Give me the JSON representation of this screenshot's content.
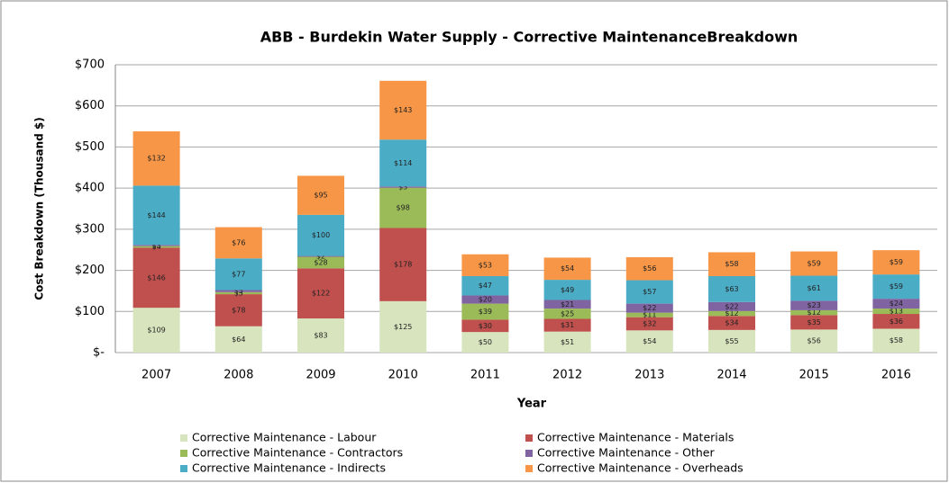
{
  "chart_data": {
    "type": "stacked_bar",
    "title": "ABB -  Burdekin Water Supply  - Corrective MaintenanceBreakdown",
    "xlabel": "Year",
    "ylabel": "Cost Breakdown (Thousand $)",
    "categories": [
      "2007",
      "2008",
      "2009",
      "2010",
      "2011",
      "2012",
      "2013",
      "2014",
      "2015",
      "2016"
    ],
    "series": [
      {
        "name": "Corrective Maintenance - Labour",
        "color": "#d7e4bd",
        "values": [
          109,
          64,
          83,
          125,
          50,
          51,
          54,
          55,
          56,
          58
        ],
        "value_labels": [
          "$109",
          "$64",
          "$83",
          "$125",
          "$50",
          "$51",
          "$54",
          "$55",
          "$56",
          "$58"
        ]
      },
      {
        "name": "Corrective Maintenance - Materials",
        "color": "#c0504d",
        "values": [
          146,
          78,
          122,
          178,
          30,
          31,
          32,
          34,
          35,
          36
        ],
        "value_labels": [
          "$146",
          "$78",
          "$122",
          "$178",
          "$30",
          "$31",
          "$32",
          "$34",
          "$35",
          "$36"
        ]
      },
      {
        "name": "Corrective Maintenance - Contractors",
        "color": "#9bbb59",
        "values": [
          4,
          5,
          28,
          98,
          39,
          25,
          11,
          12,
          12,
          13
        ],
        "value_labels": [
          "$4",
          "$5",
          "$28",
          "$98",
          "$39",
          "$25",
          "$11",
          "$12",
          "$12",
          "$13"
        ]
      },
      {
        "name": "Corrective Maintenance - Other",
        "color": "#8064a2",
        "values": [
          3,
          5,
          2,
          3,
          20,
          21,
          22,
          22,
          23,
          24
        ],
        "value_labels": [
          "$3",
          "$5",
          "$2",
          "$3",
          "$20",
          "$21",
          "$22",
          "$22",
          "$23",
          "$24"
        ]
      },
      {
        "name": "Corrective Maintenance - Indirects",
        "color": "#4bacc6",
        "values": [
          144,
          77,
          100,
          114,
          47,
          49,
          57,
          63,
          61,
          59
        ],
        "value_labels": [
          "$144",
          "$77",
          "$100",
          "$114",
          "$47",
          "$49",
          "$57",
          "$63",
          "$61",
          "$59"
        ]
      },
      {
        "name": "Corrective Maintenance - Overheads",
        "color": "#f79646",
        "values": [
          132,
          76,
          95,
          143,
          53,
          54,
          56,
          58,
          59,
          59
        ],
        "value_labels": [
          "$132",
          "$76",
          "$95",
          "$143",
          "$53",
          "$54",
          "$56",
          "$58",
          "$59",
          "$59"
        ]
      }
    ],
    "ylim": [
      0,
      700
    ],
    "yticks": [
      {
        "value": 0,
        "label": "$-"
      },
      {
        "value": 100,
        "label": "$100"
      },
      {
        "value": 200,
        "label": "$200"
      },
      {
        "value": 300,
        "label": "$300"
      },
      {
        "value": 400,
        "label": "$400"
      },
      {
        "value": 500,
        "label": "$500"
      },
      {
        "value": 600,
        "label": "$600"
      },
      {
        "value": 700,
        "label": "$700"
      }
    ],
    "grid": true,
    "legend": "bottom"
  }
}
